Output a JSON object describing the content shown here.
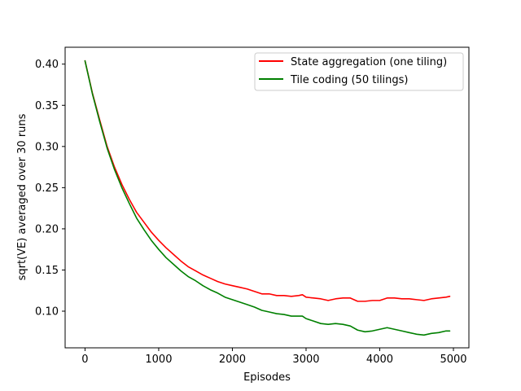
{
  "chart_data": {
    "type": "line",
    "title": "",
    "xlabel": "Episodes",
    "ylabel": "sqrt(VE) averaged over 30 runs",
    "xlim": [
      -270,
      5210
    ],
    "ylim": [
      0.0555,
      0.4205
    ],
    "xticks": [
      0,
      1000,
      2000,
      3000,
      4000,
      5000
    ],
    "xtick_labels": [
      "0",
      "1000",
      "2000",
      "3000",
      "4000",
      "5000"
    ],
    "yticks": [
      0.1,
      0.15,
      0.2,
      0.25,
      0.3,
      0.35,
      0.4
    ],
    "ytick_labels": [
      "0.10",
      "0.15",
      "0.20",
      "0.25",
      "0.30",
      "0.35",
      "0.40"
    ],
    "grid": false,
    "legend_position": "top-right",
    "series": [
      {
        "name": "State aggregation (one tiling)",
        "color": "#ff0000",
        "x": [
          0,
          100,
          200,
          300,
          400,
          500,
          600,
          700,
          800,
          900,
          1000,
          1100,
          1200,
          1300,
          1400,
          1500,
          1600,
          1700,
          1800,
          1900,
          2000,
          2100,
          2200,
          2300,
          2400,
          2500,
          2600,
          2700,
          2800,
          2900,
          2950,
          3000,
          3100,
          3200,
          3300,
          3400,
          3500,
          3600,
          3700,
          3800,
          3900,
          4000,
          4100,
          4200,
          4300,
          4400,
          4500,
          4600,
          4700,
          4800,
          4900,
          4950
        ],
        "y": [
          0.404,
          0.365,
          0.332,
          0.3,
          0.275,
          0.254,
          0.236,
          0.22,
          0.208,
          0.196,
          0.186,
          0.177,
          0.169,
          0.161,
          0.154,
          0.149,
          0.144,
          0.14,
          0.136,
          0.133,
          0.131,
          0.129,
          0.127,
          0.124,
          0.121,
          0.121,
          0.119,
          0.119,
          0.118,
          0.119,
          0.12,
          0.117,
          0.116,
          0.115,
          0.113,
          0.115,
          0.116,
          0.116,
          0.112,
          0.112,
          0.113,
          0.113,
          0.116,
          0.116,
          0.115,
          0.115,
          0.114,
          0.113,
          0.115,
          0.116,
          0.117,
          0.118
        ]
      },
      {
        "name": "Tile coding (50 tilings)",
        "color": "#008000",
        "x": [
          0,
          100,
          200,
          300,
          400,
          500,
          600,
          700,
          800,
          900,
          1000,
          1100,
          1200,
          1300,
          1400,
          1500,
          1600,
          1700,
          1800,
          1900,
          2000,
          2100,
          2200,
          2300,
          2400,
          2500,
          2600,
          2700,
          2800,
          2900,
          2950,
          3000,
          3100,
          3200,
          3300,
          3400,
          3500,
          3600,
          3700,
          3800,
          3900,
          4000,
          4100,
          4200,
          4300,
          4400,
          4500,
          4600,
          4700,
          4800,
          4900,
          4950
        ],
        "y": [
          0.404,
          0.364,
          0.33,
          0.298,
          0.272,
          0.25,
          0.231,
          0.213,
          0.199,
          0.186,
          0.175,
          0.165,
          0.157,
          0.149,
          0.142,
          0.137,
          0.131,
          0.126,
          0.122,
          0.117,
          0.114,
          0.111,
          0.108,
          0.105,
          0.101,
          0.099,
          0.097,
          0.096,
          0.094,
          0.094,
          0.094,
          0.091,
          0.088,
          0.085,
          0.084,
          0.085,
          0.084,
          0.082,
          0.077,
          0.075,
          0.076,
          0.078,
          0.08,
          0.078,
          0.076,
          0.074,
          0.072,
          0.071,
          0.073,
          0.074,
          0.076,
          0.076
        ]
      }
    ]
  }
}
